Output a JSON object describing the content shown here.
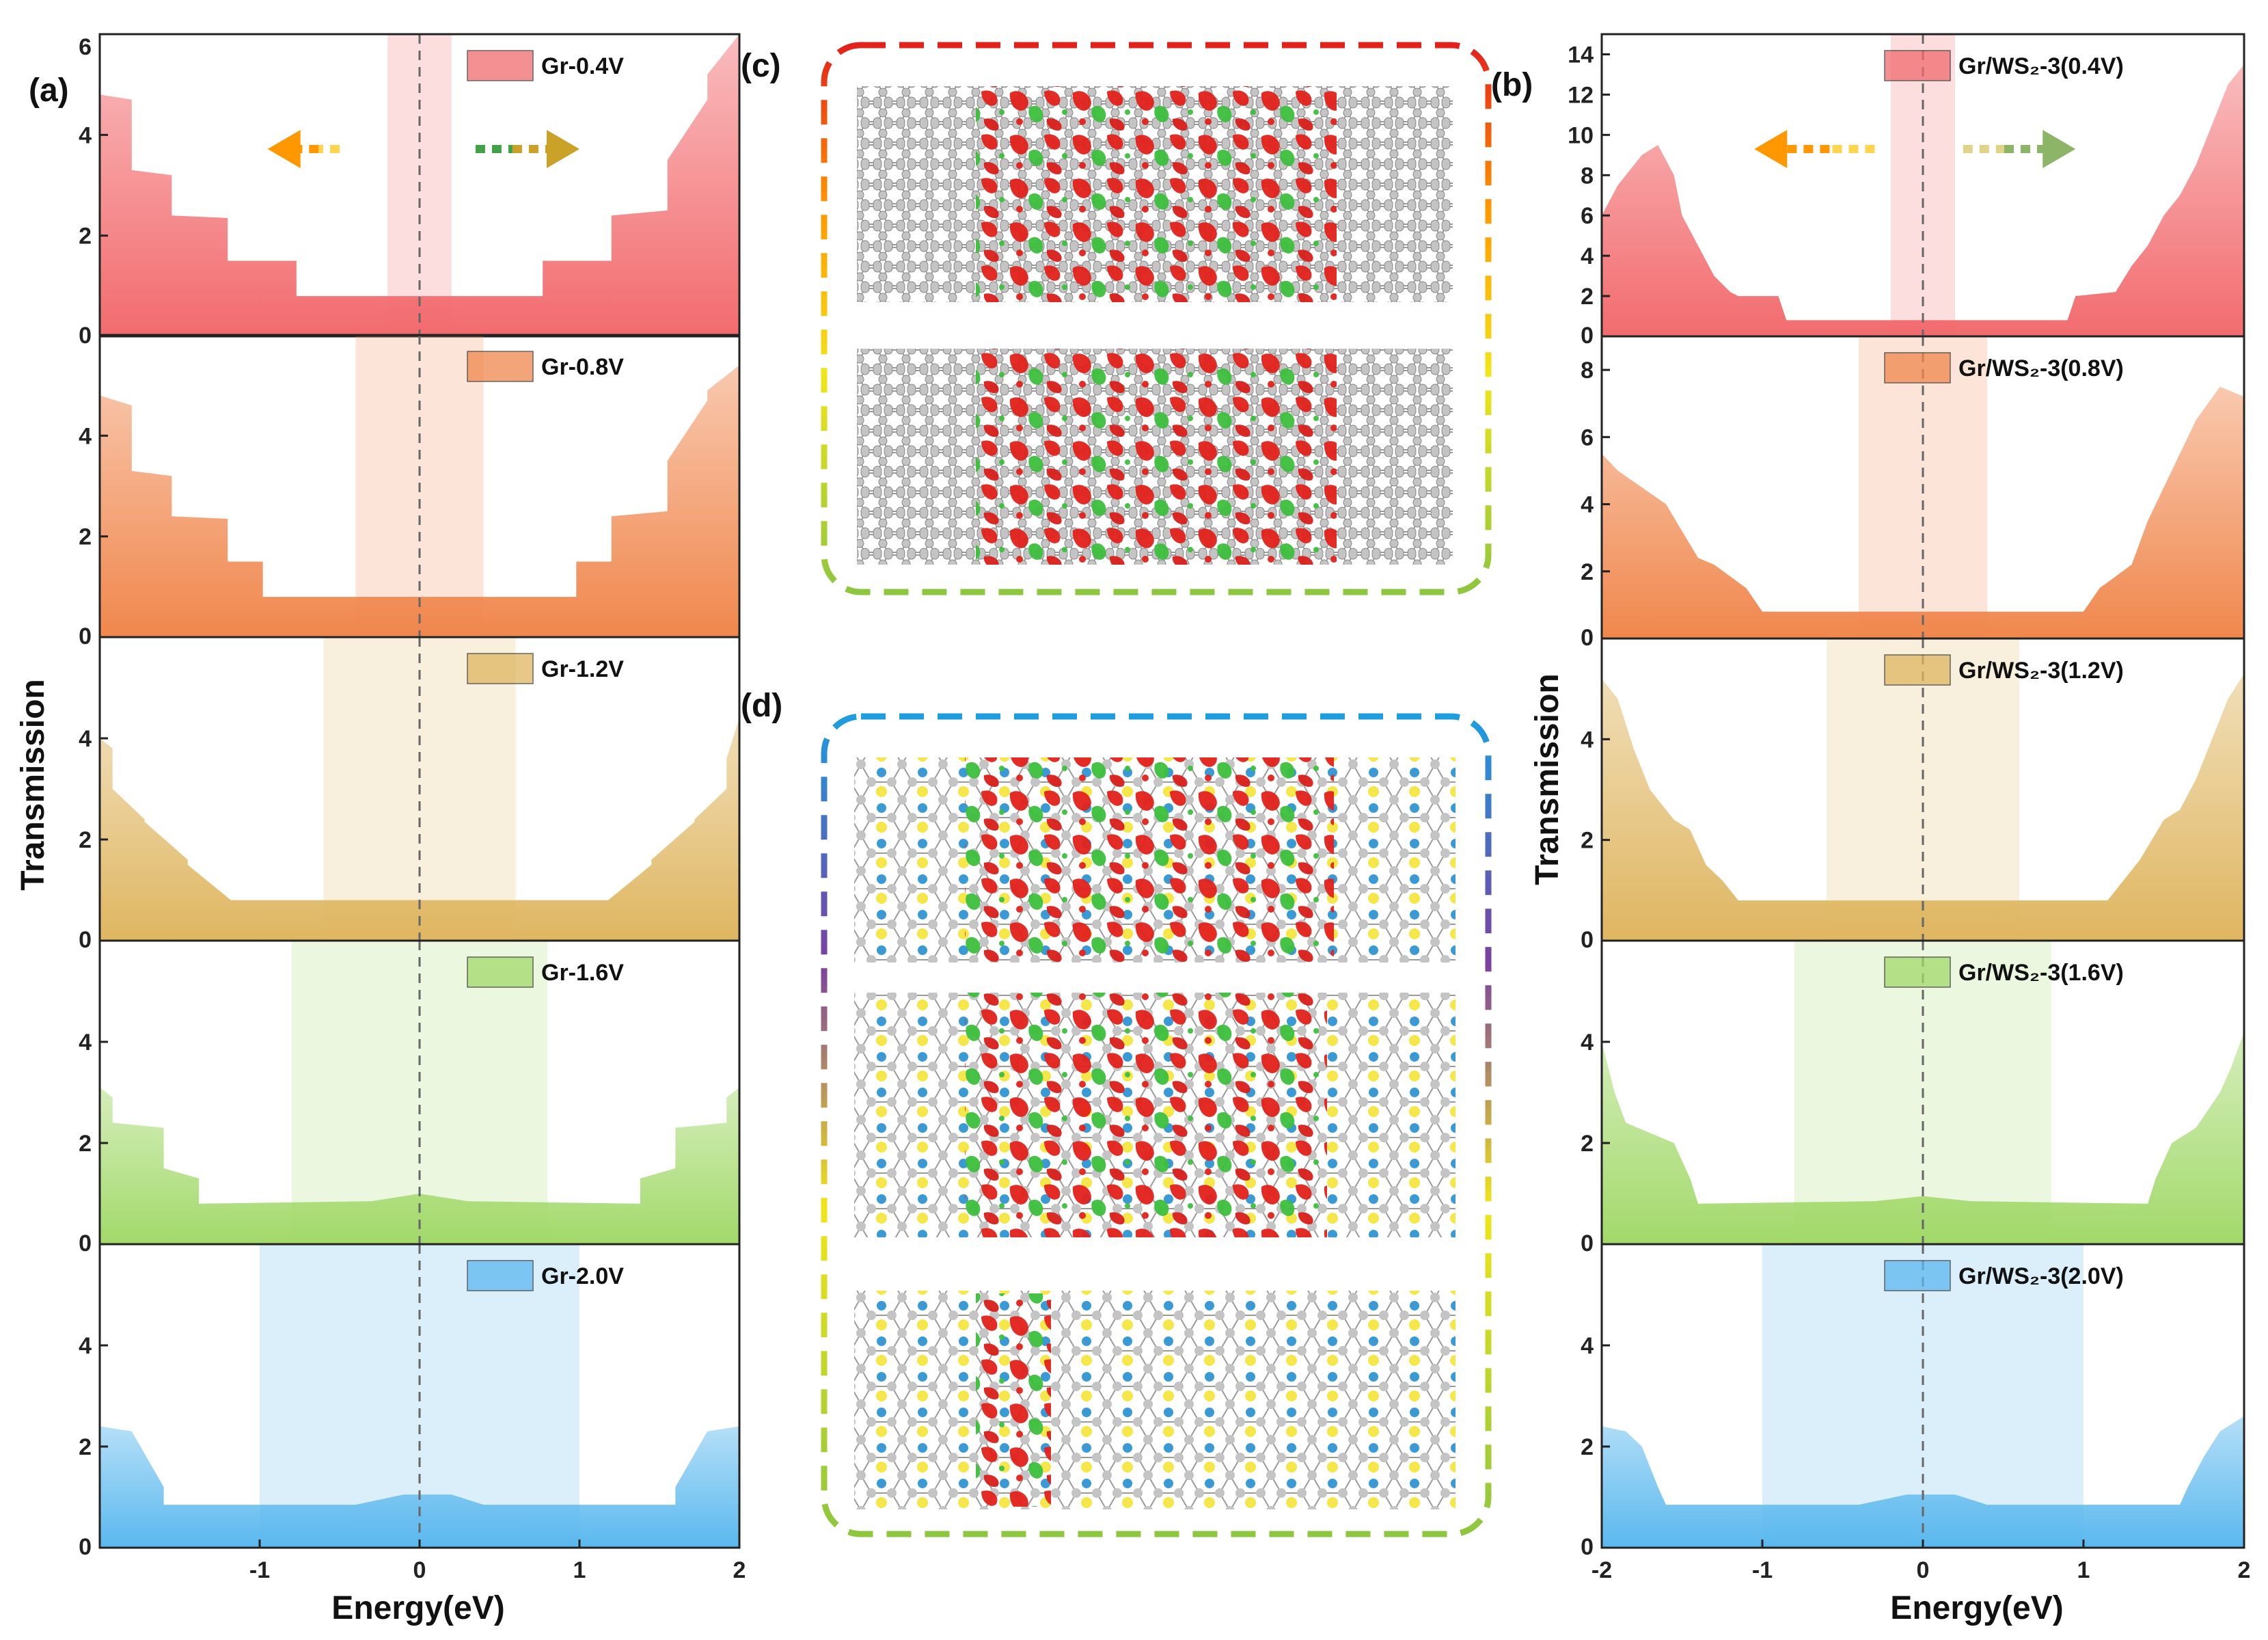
{
  "panel_labels": {
    "a": "(a)",
    "b": "(b)",
    "c": "(c)",
    "d": "(d)"
  },
  "colors": {
    "frame": "#222222",
    "dashed_line": "#666666",
    "atom_c": "#bdbdbd",
    "atom_s": "#f5e64a",
    "atom_w": "#3a9ad6",
    "iso_red": "#e3211c",
    "iso_green": "#3cbf3c"
  },
  "arrows": {
    "left_a": [
      "#ff9800",
      "#ffd54f"
    ],
    "right_a": [
      "#43a047",
      "#c9a227"
    ],
    "left_b": [
      "#ff9800",
      "#ffd54f"
    ],
    "right_b": [
      "#dfd48a",
      "#8db567"
    ]
  },
  "chart_data": [
    {
      "id": "a",
      "type": "area",
      "title": "",
      "xlabel": "Energy(eV)",
      "ylabel": "Transmission",
      "xlim": [
        -2,
        2
      ],
      "x_ticks": [
        "-1",
        "0",
        "1",
        "2"
      ],
      "panels": [
        {
          "legend": "Gr-0.4V",
          "color": "#f26b6e",
          "ylim": [
            0,
            6
          ],
          "y_ticks": [
            "0",
            "2",
            "4",
            "6"
          ],
          "window": [
            -0.2,
            0.2
          ],
          "x": [
            -2,
            -1.8,
            -1.8,
            -1.55,
            -1.55,
            -1.2,
            -1.2,
            -0.77,
            -0.77,
            0.77,
            0.77,
            1.2,
            1.2,
            1.55,
            1.55,
            1.8,
            1.8,
            2
          ],
          "y": [
            4.8,
            4.7,
            3.3,
            3.2,
            2.4,
            2.35,
            1.5,
            1.5,
            0.8,
            0.8,
            1.5,
            1.5,
            2.4,
            2.5,
            3.5,
            4.7,
            5.2,
            6.0
          ]
        },
        {
          "legend": "Gr-0.8V",
          "color": "#f0874d",
          "ylim": [
            0,
            6
          ],
          "y_ticks": [
            "0",
            "2",
            "4"
          ],
          "window": [
            -0.4,
            0.4
          ],
          "x": [
            -2,
            -1.8,
            -1.8,
            -1.55,
            -1.55,
            -1.2,
            -1.2,
            -0.98,
            -0.98,
            0.98,
            0.98,
            1.2,
            1.2,
            1.55,
            1.55,
            1.8,
            1.8,
            2
          ],
          "y": [
            4.8,
            4.6,
            3.3,
            3.2,
            2.4,
            2.35,
            1.5,
            1.5,
            0.8,
            0.8,
            1.5,
            1.5,
            2.4,
            2.5,
            3.5,
            4.7,
            4.9,
            5.4
          ]
        },
        {
          "legend": "Gr-1.2V",
          "color": "#dfb661",
          "ylim": [
            0,
            6
          ],
          "y_ticks": [
            "0",
            "2",
            "4"
          ],
          "window": [
            -0.6,
            0.6
          ],
          "x": [
            -2,
            -1.92,
            -1.92,
            -1.72,
            -1.72,
            -1.45,
            -1.45,
            -1.18,
            -1.18,
            1.18,
            1.18,
            1.45,
            1.45,
            1.72,
            1.72,
            1.92,
            1.92,
            2
          ],
          "y": [
            4.0,
            3.8,
            3.0,
            2.4,
            2.35,
            1.6,
            1.5,
            0.8,
            0.8,
            0.8,
            0.8,
            1.5,
            1.6,
            2.35,
            2.4,
            3.0,
            3.6,
            4.4
          ]
        },
        {
          "legend": "Gr-1.6V",
          "color": "#a2d96a",
          "ylim": [
            0,
            6
          ],
          "y_ticks": [
            "0",
            "2",
            "4"
          ],
          "window": [
            -0.8,
            0.8
          ],
          "x": [
            -2,
            -1.92,
            -1.92,
            -1.6,
            -1.6,
            -1.38,
            -1.38,
            -0.3,
            0,
            0.3,
            1.38,
            1.38,
            1.6,
            1.6,
            1.92,
            1.92,
            2
          ],
          "y": [
            3.1,
            2.9,
            2.4,
            2.3,
            1.5,
            1.3,
            0.8,
            0.85,
            1.0,
            0.85,
            0.8,
            1.3,
            1.5,
            2.3,
            2.4,
            2.9,
            3.1
          ]
        },
        {
          "legend": "Gr-2.0V",
          "color": "#5ab8ee",
          "ylim": [
            0,
            6
          ],
          "y_ticks": [
            "0",
            "2",
            "4"
          ],
          "window": [
            -1.0,
            1.0
          ],
          "x": [
            -2,
            -1.8,
            -1.6,
            -1.6,
            -0.4,
            -0.1,
            0.2,
            0.4,
            1.6,
            1.6,
            1.8,
            2
          ],
          "y": [
            2.4,
            2.3,
            1.2,
            0.85,
            0.85,
            1.05,
            1.05,
            0.85,
            0.85,
            1.2,
            2.3,
            2.4
          ]
        }
      ]
    },
    {
      "id": "b",
      "type": "area",
      "title": "",
      "xlabel": "Energy(eV)",
      "ylabel": "Transmission",
      "xlim": [
        -2,
        2
      ],
      "x_ticks": [
        "-2",
        "-1",
        "0",
        "1",
        "2"
      ],
      "panels": [
        {
          "legend": "Gr/WS₂-3(0.4V)",
          "color": "#f26b6e",
          "ylim": [
            0,
            15
          ],
          "y_ticks": [
            "0",
            "2",
            "4",
            "6",
            "8",
            "10",
            "12",
            "14"
          ],
          "window": [
            -0.2,
            0.2
          ],
          "x": [
            -2,
            -1.9,
            -1.75,
            -1.65,
            -1.55,
            -1.5,
            -1.4,
            -1.3,
            -1.2,
            -1.15,
            -0.9,
            -0.85,
            0.9,
            0.95,
            1.2,
            1.3,
            1.4,
            1.5,
            1.6,
            1.7,
            1.8,
            1.9,
            2
          ],
          "y": [
            6.0,
            7.5,
            9.0,
            9.5,
            8.0,
            6.0,
            4.5,
            3.0,
            2.2,
            2.0,
            2.0,
            0.8,
            0.8,
            2.0,
            2.2,
            3.5,
            4.5,
            6.0,
            7.0,
            8.5,
            10.5,
            12.5,
            13.5
          ]
        },
        {
          "legend": "Gr/WS₂-3(0.8V)",
          "color": "#f0874d",
          "ylim": [
            0,
            9
          ],
          "y_ticks": [
            "0",
            "2",
            "4",
            "6",
            "8"
          ],
          "window": [
            -0.4,
            0.4
          ],
          "x": [
            -2,
            -1.9,
            -1.75,
            -1.6,
            -1.5,
            -1.4,
            -1.3,
            -1.1,
            -1.0,
            1.0,
            1.1,
            1.3,
            1.4,
            1.55,
            1.7,
            1.85,
            2
          ],
          "y": [
            5.5,
            5.0,
            4.5,
            4.0,
            3.2,
            2.4,
            2.2,
            1.5,
            0.8,
            0.8,
            1.5,
            2.2,
            3.5,
            5.0,
            6.5,
            7.5,
            7.2
          ]
        },
        {
          "legend": "Gr/WS₂-3(1.2V)",
          "color": "#dfb661",
          "ylim": [
            0,
            6
          ],
          "y_ticks": [
            "0",
            "2",
            "4"
          ],
          "window": [
            -0.6,
            0.6
          ],
          "x": [
            -2,
            -1.9,
            -1.8,
            -1.7,
            -1.55,
            -1.45,
            -1.35,
            -1.25,
            -1.15,
            1.15,
            1.25,
            1.35,
            1.5,
            1.6,
            1.7,
            1.8,
            1.9,
            2
          ],
          "y": [
            5.2,
            4.8,
            3.8,
            3.0,
            2.4,
            2.2,
            1.5,
            1.2,
            0.8,
            0.8,
            1.2,
            1.6,
            2.4,
            2.6,
            3.2,
            4.0,
            4.8,
            5.3
          ]
        },
        {
          "legend": "Gr/WS₂-3(1.6V)",
          "color": "#a2d96a",
          "ylim": [
            0,
            6
          ],
          "y_ticks": [
            "0",
            "2",
            "4"
          ],
          "window": [
            -0.8,
            0.8
          ],
          "x": [
            -2,
            -1.92,
            -1.85,
            -1.7,
            -1.55,
            -1.45,
            -1.4,
            -0.3,
            0,
            0.3,
            1.4,
            1.45,
            1.55,
            1.7,
            1.85,
            1.92,
            2
          ],
          "y": [
            4.0,
            3.0,
            2.4,
            2.2,
            2.0,
            1.3,
            0.8,
            0.85,
            0.95,
            0.85,
            0.8,
            1.3,
            2.0,
            2.3,
            3.0,
            3.5,
            4.2
          ]
        },
        {
          "legend": "Gr/WS₂-3(2.0V)",
          "color": "#5ab8ee",
          "ylim": [
            0,
            6
          ],
          "y_ticks": [
            "0",
            "2",
            "4"
          ],
          "window": [
            -1.0,
            1.0
          ],
          "x": [
            -2,
            -1.85,
            -1.75,
            -1.65,
            -1.6,
            -0.4,
            -0.1,
            0.2,
            0.4,
            1.6,
            1.65,
            1.75,
            1.85,
            2
          ],
          "y": [
            2.4,
            2.3,
            2.0,
            1.2,
            0.85,
            0.85,
            1.05,
            1.05,
            0.85,
            0.85,
            1.2,
            1.8,
            2.3,
            2.6
          ]
        }
      ]
    }
  ]
}
